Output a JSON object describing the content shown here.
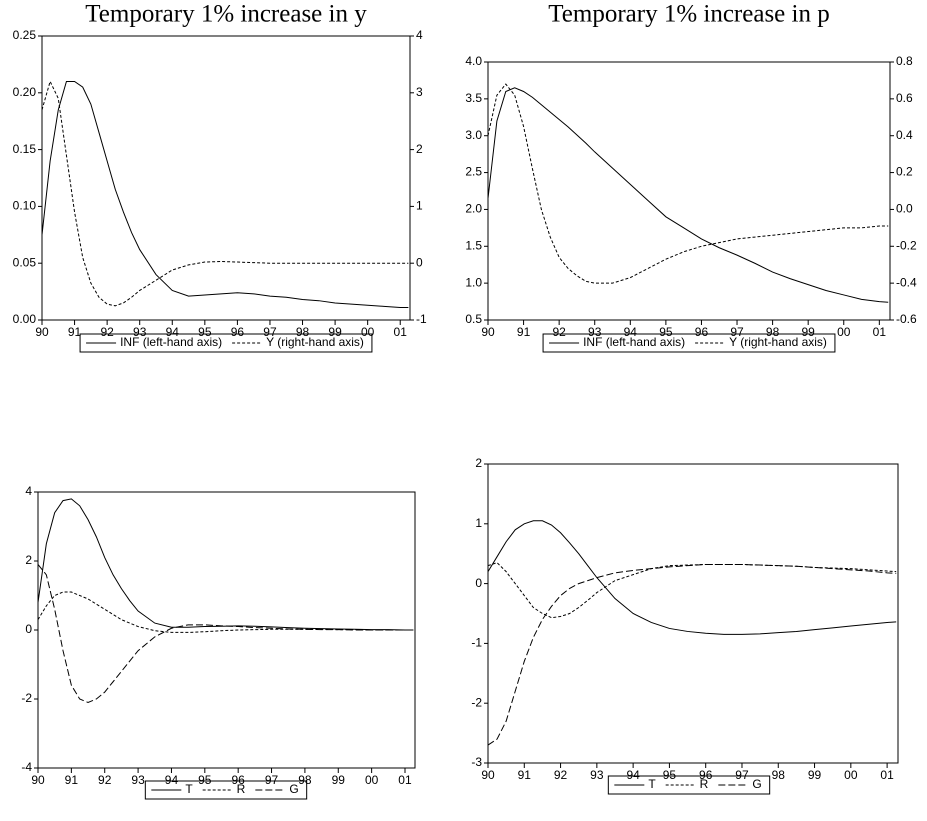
{
  "chart_data": [
    {
      "type": "line",
      "title": "Temporary 1% increase in y",
      "x": [
        90,
        90.25,
        90.5,
        90.75,
        91,
        91.25,
        91.5,
        91.75,
        92,
        92.25,
        92.5,
        92.75,
        93,
        93.5,
        94,
        94.5,
        95,
        95.5,
        96,
        96.5,
        97,
        97.5,
        98,
        98.5,
        99,
        99.5,
        100,
        100.5,
        101,
        101.25
      ],
      "xlim": [
        90,
        101.3
      ],
      "xticks": [
        90,
        91,
        92,
        93,
        94,
        95,
        96,
        97,
        98,
        99,
        {
          "value": 100,
          "label": "00"
        },
        {
          "value": 101,
          "label": "01"
        }
      ],
      "ylim": [
        0,
        0.25
      ],
      "yticks": [
        {
          "value": 0,
          "label": "0.00"
        },
        0.05,
        {
          "value": 0.1,
          "label": "0.10"
        },
        0.15,
        {
          "value": 0.2,
          "label": "0.20"
        },
        0.25
      ],
      "y2lim": [
        -1,
        4
      ],
      "y2ticks": [
        -1,
        0,
        1,
        2,
        3,
        4
      ],
      "series": [
        {
          "name": "INF (left-hand axis)",
          "color": "#000000",
          "line_style": "solid",
          "values": [
            0.075,
            0.14,
            0.185,
            0.21,
            0.21,
            0.205,
            0.19,
            0.165,
            0.14,
            0.115,
            0.095,
            0.077,
            0.062,
            0.04,
            0.026,
            0.021,
            0.022,
            0.023,
            0.024,
            0.023,
            0.021,
            0.02,
            0.018,
            0.017,
            0.015,
            0.014,
            0.013,
            0.012,
            0.011,
            0.011
          ]
        },
        {
          "name": "Y (right-hand axis)",
          "color": "#000000",
          "line_style": "dotted",
          "axis": "y2",
          "values": [
            2.7,
            3.2,
            2.9,
            1.9,
            0.9,
            0.1,
            -0.35,
            -0.6,
            -0.72,
            -0.75,
            -0.7,
            -0.6,
            -0.48,
            -0.3,
            -0.12,
            -0.03,
            0.02,
            0.03,
            0.02,
            0.01,
            0,
            0,
            0,
            0,
            0,
            0,
            0,
            0,
            0,
            0
          ]
        }
      ]
    },
    {
      "type": "line",
      "title": "Temporary 1% increase in p",
      "x": [
        90,
        90.25,
        90.5,
        90.75,
        91,
        91.25,
        91.5,
        91.75,
        92,
        92.25,
        92.5,
        92.75,
        93,
        93.5,
        94,
        94.5,
        95,
        95.5,
        96,
        96.5,
        97,
        97.5,
        98,
        98.5,
        99,
        99.5,
        100,
        100.5,
        101,
        101.25
      ],
      "xlim": [
        90,
        101.3
      ],
      "xticks": [
        90,
        91,
        92,
        93,
        94,
        95,
        96,
        97,
        98,
        99,
        {
          "value": 100,
          "label": "00"
        },
        {
          "value": 101,
          "label": "01"
        }
      ],
      "ylim": [
        0.5,
        4
      ],
      "yticks": [
        0.5,
        {
          "value": 1,
          "label": "1.0"
        },
        1.5,
        {
          "value": 2,
          "label": "2.0"
        },
        2.5,
        {
          "value": 3,
          "label": "3.0"
        },
        3.5,
        {
          "value": 4,
          "label": "4.0"
        }
      ],
      "y2lim": [
        -0.6,
        0.8
      ],
      "y2ticks": [
        -0.6,
        -0.4,
        -0.2,
        {
          "value": 0,
          "label": "0.0"
        },
        0.2,
        0.4,
        0.6,
        0.8
      ],
      "series": [
        {
          "name": "INF (left-hand axis)",
          "color": "#000000",
          "line_style": "solid",
          "values": [
            2.15,
            3.2,
            3.6,
            3.65,
            3.6,
            3.52,
            3.42,
            3.32,
            3.22,
            3.12,
            3.01,
            2.9,
            2.78,
            2.56,
            2.34,
            2.12,
            1.9,
            1.75,
            1.6,
            1.48,
            1.38,
            1.27,
            1.15,
            1.06,
            0.98,
            0.9,
            0.84,
            0.78,
            0.75,
            0.74
          ]
        },
        {
          "name": "Y (right-hand axis)",
          "color": "#000000",
          "line_style": "dotted",
          "axis": "y2",
          "values": [
            0.4,
            0.62,
            0.68,
            0.62,
            0.45,
            0.22,
            0,
            -0.15,
            -0.26,
            -0.32,
            -0.36,
            -0.39,
            -0.4,
            -0.4,
            -0.37,
            -0.32,
            -0.27,
            -0.23,
            -0.2,
            -0.18,
            -0.16,
            -0.15,
            -0.14,
            -0.13,
            -0.12,
            -0.11,
            -0.1,
            -0.1,
            -0.09,
            -0.09
          ]
        }
      ]
    },
    {
      "type": "line",
      "x": [
        90,
        90.25,
        90.5,
        90.75,
        91,
        91.25,
        91.5,
        91.75,
        92,
        92.25,
        92.5,
        92.75,
        93,
        93.5,
        94,
        94.5,
        95,
        95.5,
        96,
        96.5,
        97,
        97.5,
        98,
        98.5,
        99,
        99.5,
        100,
        100.5,
        101,
        101.25
      ],
      "xlim": [
        90,
        101.3
      ],
      "xticks": [
        90,
        91,
        92,
        93,
        94,
        95,
        96,
        97,
        98,
        99,
        {
          "value": 100,
          "label": "00"
        },
        {
          "value": 101,
          "label": "01"
        }
      ],
      "ylim": [
        -4,
        4
      ],
      "yticks": [
        -4,
        -2,
        0,
        2,
        4
      ],
      "series": [
        {
          "name": "T",
          "color": "#000000",
          "line_style": "solid",
          "values": [
            0.8,
            2.5,
            3.4,
            3.75,
            3.8,
            3.6,
            3.2,
            2.7,
            2.1,
            1.6,
            1.2,
            0.85,
            0.55,
            0.2,
            0.08,
            0.08,
            0.1,
            0.11,
            0.12,
            0.11,
            0.09,
            0.07,
            0.05,
            0.04,
            0.03,
            0.02,
            0.01,
            0.01,
            0,
            0
          ]
        },
        {
          "name": "R",
          "color": "#000000",
          "line_style": "dotted",
          "values": [
            0.3,
            0.7,
            1,
            1.1,
            1.1,
            1,
            0.9,
            0.75,
            0.6,
            0.45,
            0.3,
            0.2,
            0.1,
            -0.02,
            -0.07,
            -0.07,
            -0.05,
            -0.02,
            0,
            0.01,
            0.02,
            0.02,
            0.02,
            0.02,
            0.01,
            0.01,
            0,
            0,
            0,
            0
          ]
        },
        {
          "name": "G",
          "color": "#000000",
          "line_style": "dashed",
          "values": [
            1.9,
            1.6,
            0.6,
            -0.6,
            -1.6,
            -2,
            -2.1,
            -2,
            -1.8,
            -1.5,
            -1.2,
            -0.9,
            -0.6,
            -0.2,
            0.05,
            0.15,
            0.15,
            0.12,
            0.1,
            0.07,
            0.05,
            0.03,
            0.02,
            0.01,
            0.01,
            0,
            0,
            0,
            0,
            0
          ]
        }
      ]
    },
    {
      "type": "line",
      "x": [
        90,
        90.25,
        90.5,
        90.75,
        91,
        91.25,
        91.5,
        91.75,
        92,
        92.25,
        92.5,
        92.75,
        93,
        93.5,
        94,
        94.5,
        95,
        95.5,
        96,
        96.5,
        97,
        97.5,
        98,
        98.5,
        99,
        99.5,
        100,
        100.5,
        101,
        101.25
      ],
      "xlim": [
        90,
        101.3
      ],
      "xticks": [
        90,
        91,
        92,
        93,
        94,
        95,
        96,
        97,
        98,
        99,
        {
          "value": 100,
          "label": "00"
        },
        {
          "value": 101,
          "label": "01"
        }
      ],
      "ylim": [
        -3,
        2
      ],
      "yticks": [
        -3,
        -2,
        -1,
        0,
        1,
        2
      ],
      "series": [
        {
          "name": "T",
          "color": "#000000",
          "line_style": "solid",
          "values": [
            0.2,
            0.45,
            0.7,
            0.9,
            1,
            1.05,
            1.05,
            0.98,
            0.85,
            0.68,
            0.5,
            0.3,
            0.1,
            -0.25,
            -0.5,
            -0.65,
            -0.75,
            -0.8,
            -0.83,
            -0.85,
            -0.85,
            -0.84,
            -0.82,
            -0.8,
            -0.77,
            -0.74,
            -0.71,
            -0.68,
            -0.65,
            -0.64
          ]
        },
        {
          "name": "R",
          "color": "#000000",
          "line_style": "dotted",
          "values": [
            0.3,
            0.35,
            0.2,
            0,
            -0.2,
            -0.4,
            -0.5,
            -0.57,
            -0.55,
            -0.5,
            -0.4,
            -0.28,
            -0.15,
            0.05,
            0.15,
            0.25,
            0.3,
            0.31,
            0.32,
            0.32,
            0.32,
            0.31,
            0.3,
            0.29,
            0.27,
            0.26,
            0.25,
            0.23,
            0.21,
            0.2
          ]
        },
        {
          "name": "G",
          "color": "#000000",
          "line_style": "dashed",
          "values": [
            -2.7,
            -2.6,
            -2.3,
            -1.8,
            -1.3,
            -0.9,
            -0.6,
            -0.38,
            -0.2,
            -0.08,
            0,
            0.05,
            0.1,
            0.18,
            0.22,
            0.25,
            0.28,
            0.3,
            0.32,
            0.32,
            0.32,
            0.31,
            0.3,
            0.29,
            0.27,
            0.25,
            0.23,
            0.21,
            0.18,
            0.17
          ]
        }
      ]
    }
  ]
}
